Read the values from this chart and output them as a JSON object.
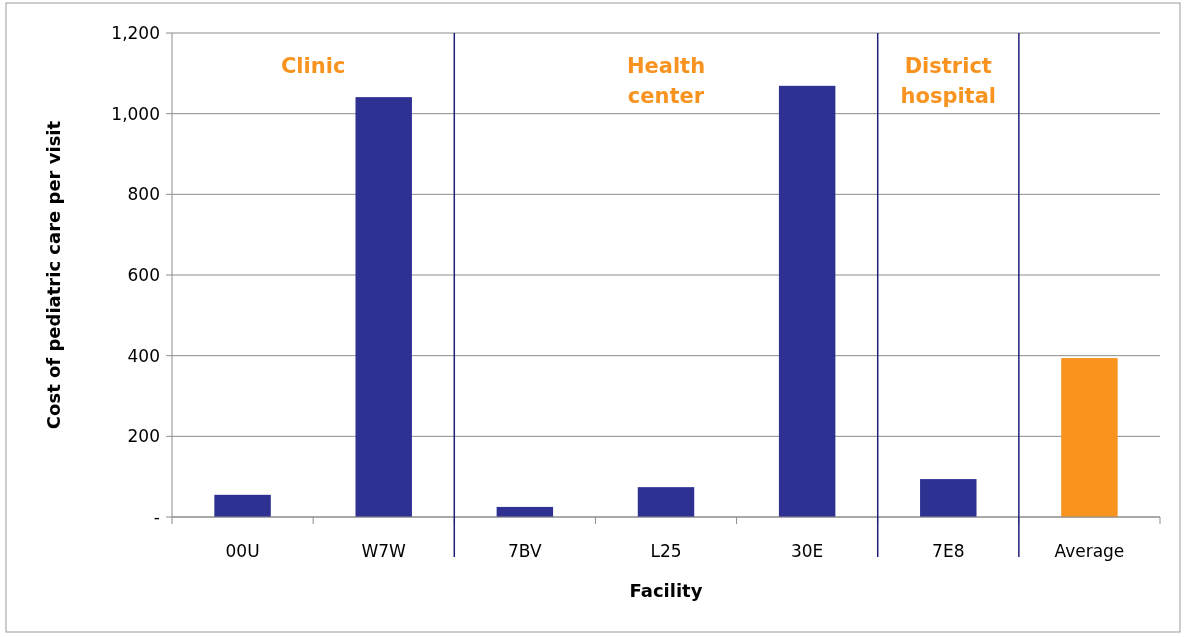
{
  "chart_data": {
    "type": "bar",
    "xlabel": "Facility",
    "ylabel": "Cost of pediatric care per visit",
    "categories": [
      "00U",
      "W7W",
      "7BV",
      "L25",
      "30E",
      "7E8",
      "Average"
    ],
    "values": [
      55,
      1041,
      25,
      74,
      1069,
      94,
      394
    ],
    "colors": [
      "#2e3192",
      "#2e3192",
      "#2e3192",
      "#2e3192",
      "#2e3192",
      "#2e3192",
      "#f7931e"
    ],
    "ylim": [
      0,
      1200
    ],
    "yticks": [
      {
        "value": 0,
        "label": "-"
      },
      {
        "value": 200,
        "label": "200"
      },
      {
        "value": 400,
        "label": "400"
      },
      {
        "value": 600,
        "label": "600"
      },
      {
        "value": 800,
        "label": "800"
      },
      {
        "value": 1000,
        "label": "1,000"
      },
      {
        "value": 1200,
        "label": "1,200"
      }
    ],
    "grid": "y",
    "annotations": [
      "Clinic",
      "Health center",
      "District hospital"
    ]
  }
}
